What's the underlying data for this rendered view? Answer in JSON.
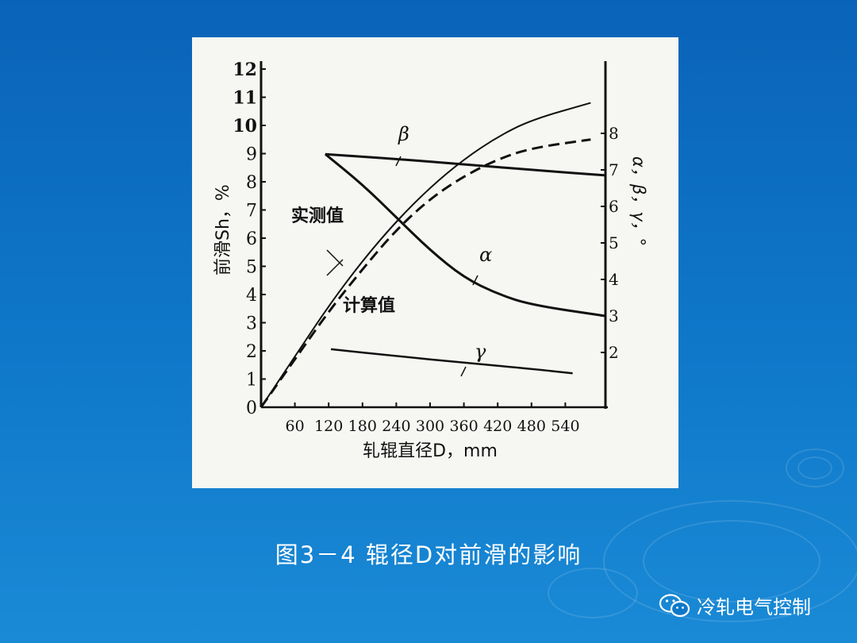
{
  "caption": "图3－4 辊径D对前滑的影响",
  "watermark": {
    "text": "冷轧电气控制",
    "icon": "wechat-icon"
  },
  "colors": {
    "background": "#0f78c9",
    "panel": "#f6f6f3",
    "ink": "#111111",
    "caption": "#ffffff"
  },
  "chart_data": {
    "type": "line",
    "xlabel": "轧辊直径D，mm",
    "ylabel_left": "前滑Sh，%",
    "ylabel_right": "α，β，γ，°",
    "xticks": [
      60,
      120,
      180,
      240,
      300,
      360,
      420,
      480,
      540
    ],
    "yticks_left": [
      0,
      1,
      2,
      3,
      4,
      5,
      6,
      7,
      8,
      9,
      10,
      11,
      12
    ],
    "yticks_right": [
      2,
      3,
      4,
      5,
      6,
      7,
      8
    ],
    "xlim": [
      0,
      640
    ],
    "ylim_left": [
      0,
      12
    ],
    "ylim_right": [
      0,
      8.5
    ],
    "grid": false,
    "series": [
      {
        "name": "实测值",
        "axis": "left",
        "style": "solid",
        "x": [
          0,
          60,
          120,
          180,
          240,
          300,
          360,
          420,
          480,
          585
        ],
        "y": [
          0,
          1.8,
          3.6,
          5.2,
          6.6,
          7.8,
          8.8,
          9.6,
          10.2,
          10.8
        ]
      },
      {
        "name": "计算值",
        "axis": "left",
        "style": "dashed",
        "x": [
          0,
          60,
          120,
          180,
          240,
          300,
          360,
          420,
          480,
          585
        ],
        "y": [
          0,
          1.7,
          3.4,
          4.9,
          6.3,
          7.4,
          8.2,
          8.8,
          9.2,
          9.5
        ]
      },
      {
        "name": "β",
        "axis": "right",
        "style": "solid",
        "x": [
          114,
          240,
          360,
          480,
          611
        ],
        "y": [
          7.43,
          7.3,
          7.15,
          7.0,
          6.85
        ]
      },
      {
        "name": "α",
        "axis": "right",
        "style": "solid",
        "x": [
          114,
          180,
          240,
          300,
          360,
          420,
          480,
          611
        ],
        "y": [
          7.43,
          6.6,
          5.7,
          4.8,
          4.05,
          3.6,
          3.3,
          3.0
        ]
      },
      {
        "name": "γ",
        "axis": "right",
        "style": "solid",
        "x": [
          124,
          240,
          360,
          480,
          553
        ],
        "y": [
          2.09,
          1.9,
          1.72,
          1.55,
          1.43
        ]
      }
    ]
  }
}
